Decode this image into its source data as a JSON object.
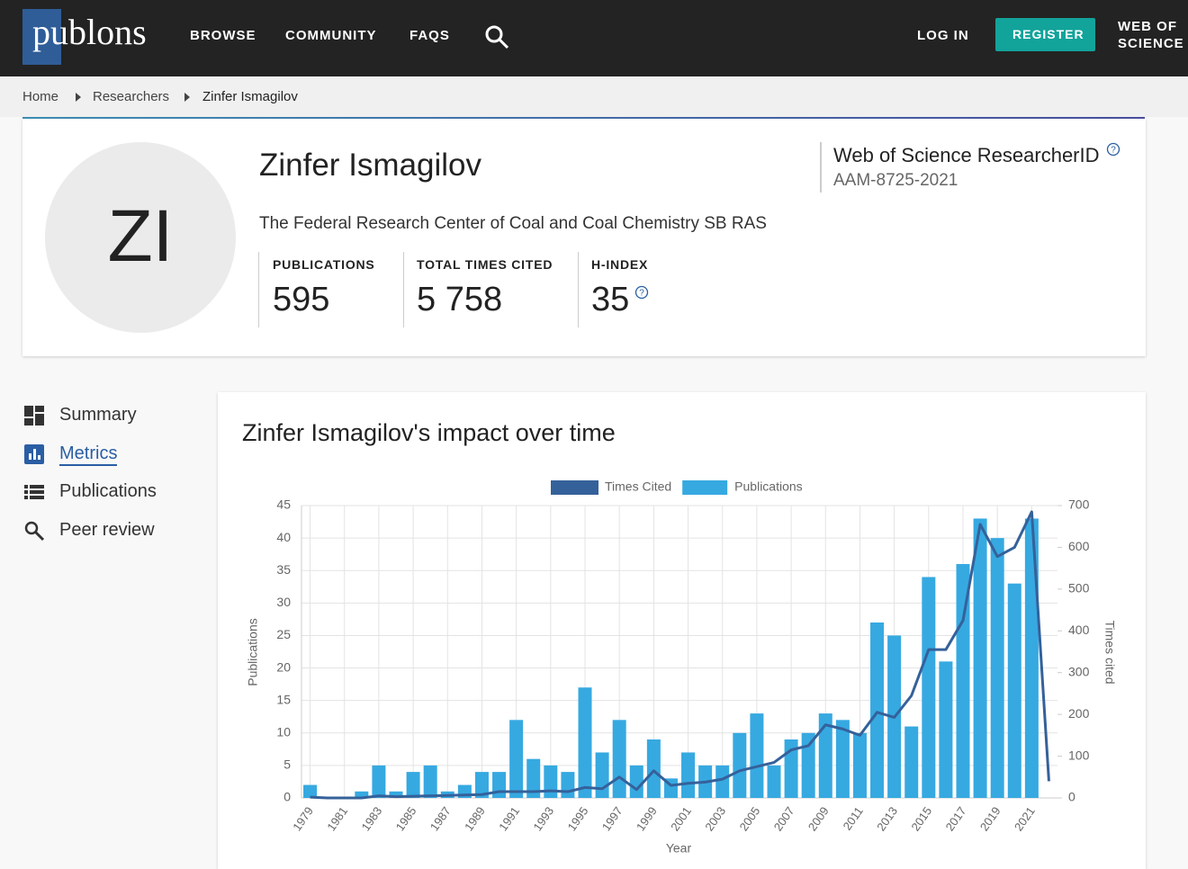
{
  "nav": {
    "logo": "publons",
    "links": [
      "BROWSE",
      "COMMUNITY",
      "FAQS"
    ],
    "login": "LOG IN",
    "register": "REGISTER",
    "wos": [
      "WEB OF",
      "SCIENCE"
    ]
  },
  "breadcrumb": [
    "Home",
    "Researchers",
    "Zinfer Ismagilov"
  ],
  "profile": {
    "initials": "ZI",
    "name": "Zinfer Ismagilov",
    "affiliation": "The Federal Research Center of Coal and Coal Chemistry SB RAS",
    "rid_label": "Web of Science ResearcherID",
    "rid": "AAM-8725-2021",
    "stats": [
      {
        "label": "PUBLICATIONS",
        "value": "595"
      },
      {
        "label": "TOTAL TIMES CITED",
        "value": "5 758"
      },
      {
        "label": "H-INDEX",
        "value": "35"
      }
    ]
  },
  "sidebar": [
    "Summary",
    "Metrics",
    "Publications",
    "Peer review"
  ],
  "chart_data": {
    "type": "bar-line",
    "title": "Zinfer Ismagilov's impact over time",
    "x_label": "Year",
    "y_label": "Publications",
    "y2_label": "Times cited",
    "categories": [
      "1979",
      null,
      "1981",
      null,
      "1983",
      null,
      "1985",
      null,
      "1987",
      null,
      "1989",
      null,
      "1991",
      null,
      "1993",
      null,
      "1995",
      null,
      "1997",
      null,
      "1999",
      null,
      "2001",
      null,
      "2003",
      null,
      "2005",
      null,
      "2007",
      null,
      "2009",
      null,
      "2011",
      null,
      "2013",
      null,
      "2015",
      null,
      "2017",
      null,
      "2019",
      null,
      "2021",
      null
    ],
    "series": [
      {
        "name": "Times Cited",
        "type": "line",
        "axis": "y2",
        "color": "#35619a",
        "values": [
          2,
          0,
          0,
          0,
          5,
          3,
          4,
          5,
          6,
          7,
          8,
          15,
          15,
          15,
          17,
          15,
          25,
          22,
          50,
          20,
          65,
          30,
          35,
          38,
          45,
          65,
          75,
          85,
          115,
          125,
          175,
          165,
          150,
          205,
          193,
          245,
          355,
          355,
          425,
          655,
          578,
          600,
          685,
          40
        ]
      },
      {
        "name": "Publications",
        "type": "bar",
        "color": "#36a9e1",
        "values": [
          2,
          0,
          0,
          1,
          5,
          1,
          4,
          5,
          1,
          2,
          4,
          4,
          12,
          6,
          5,
          4,
          17,
          7,
          12,
          5,
          9,
          3,
          7,
          5,
          5,
          10,
          13,
          5,
          9,
          10,
          13,
          12,
          10,
          27,
          25,
          11,
          34,
          21,
          36,
          43,
          40,
          33,
          43,
          0
        ]
      }
    ],
    "ylim": [
      0,
      45
    ],
    "yticks": [
      0,
      5,
      10,
      15,
      20,
      25,
      30,
      35,
      40,
      45
    ],
    "y2lim": [
      0,
      700
    ],
    "y2ticks": [
      0,
      100,
      200,
      300,
      400,
      500,
      600,
      700
    ],
    "grid": true,
    "legend": "top"
  }
}
